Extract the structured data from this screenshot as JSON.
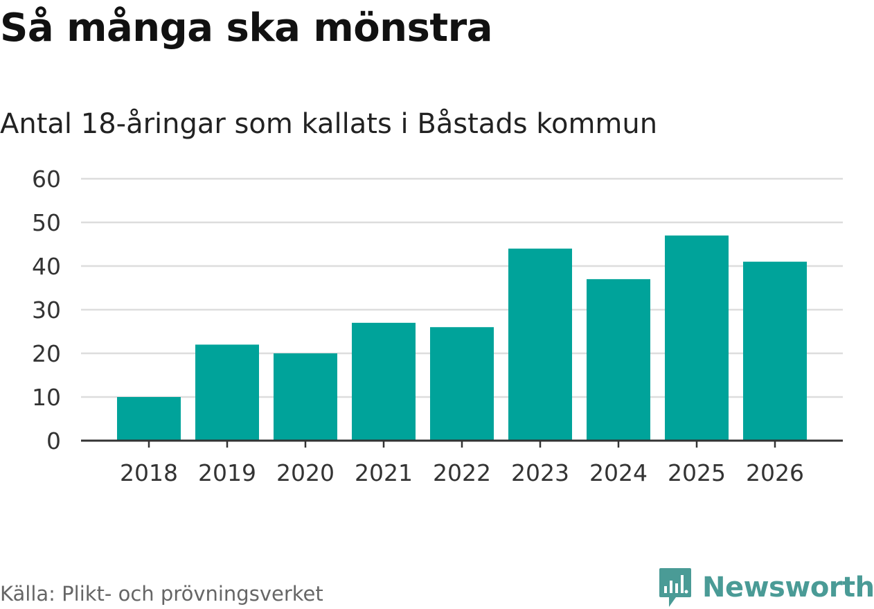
{
  "title": "Så många ska mönstra",
  "subtitle": "Antal 18-åringar som kallats i Båstads kommun",
  "source": "Källa: Plikt- och prövningsverket",
  "brand": {
    "name": "Newsworthy",
    "icon": "newsworthy-logo-icon",
    "color": "#4a9b96"
  },
  "colors": {
    "bar": "#00a39a",
    "grid": "#dddddd",
    "axis": "#333333",
    "tick_text": "#333333"
  },
  "chart_data": {
    "type": "bar",
    "title": "Så många ska mönstra",
    "subtitle": "Antal 18-åringar som kallats i Båstads kommun",
    "xlabel": "",
    "ylabel": "",
    "categories": [
      "2018",
      "2019",
      "2020",
      "2021",
      "2022",
      "2023",
      "2024",
      "2025",
      "2026"
    ],
    "values": [
      10,
      22,
      20,
      27,
      26,
      44,
      37,
      47,
      41
    ],
    "ylim": [
      0,
      60
    ],
    "yticks": [
      "0",
      "10",
      "20",
      "30",
      "40",
      "50",
      "60"
    ],
    "grid": true,
    "legend": "none"
  }
}
